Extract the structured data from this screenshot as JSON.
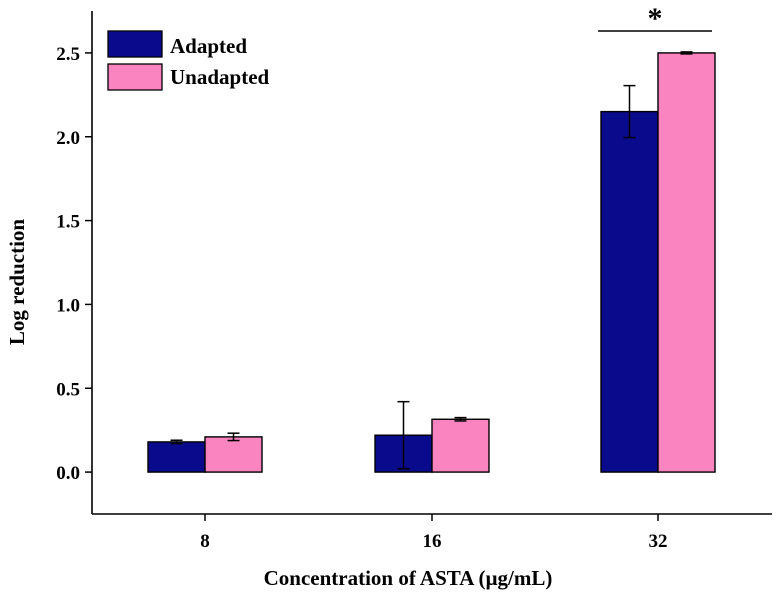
{
  "chart_data": {
    "type": "bar",
    "title": "",
    "xlabel": "Concentration of ASTA (µg/mL)",
    "ylabel": "Log reduction",
    "categories": [
      "8",
      "16",
      "32"
    ],
    "ylim": [
      -0.25,
      2.75
    ],
    "yticks": [
      0.0,
      0.5,
      1.0,
      1.5,
      2.0,
      2.5
    ],
    "ytick_labels": [
      "0.0",
      "0.5",
      "1.0",
      "1.5",
      "2.0",
      "2.5"
    ],
    "series": [
      {
        "name": "Adapted",
        "color": "#0a0a8c",
        "values": [
          0.18,
          0.22,
          2.15
        ],
        "errors": [
          0.01,
          0.2,
          0.155
        ]
      },
      {
        "name": "Unadapted",
        "color": "#f984c0",
        "values": [
          0.21,
          0.315,
          2.5
        ],
        "errors": [
          0.022,
          0.01,
          0.006
        ]
      }
    ],
    "legend": {
      "position": "top-left",
      "entries": [
        "Adapted",
        "Unadapted"
      ]
    },
    "significance": {
      "category": "32",
      "label": "*"
    }
  }
}
